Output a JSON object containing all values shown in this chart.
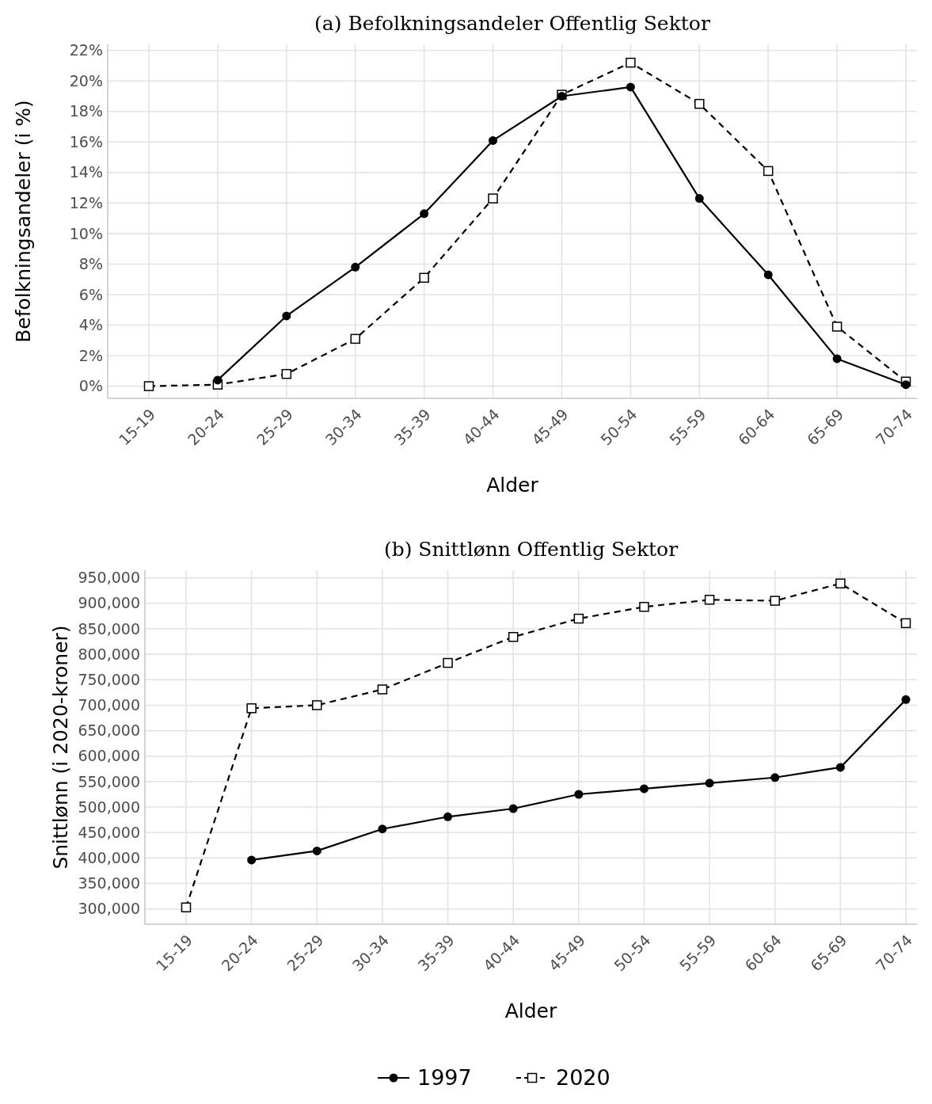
{
  "chart_data": [
    {
      "type": "line",
      "title": "(a) Befolkningsandeler Offentlig Sektor",
      "xlabel": "Alder",
      "ylabel": "Befolkningsandeler (i %)",
      "categories": [
        "15-19",
        "20-24",
        "25-29",
        "30-34",
        "35-39",
        "40-44",
        "45-49",
        "50-54",
        "55-59",
        "60-64",
        "65-69",
        "70-74"
      ],
      "series": [
        {
          "name": "1997",
          "color": "#000000",
          "marker": "circle",
          "line_style": "solid",
          "values": [
            null,
            0.4,
            4.6,
            7.8,
            11.3,
            16.1,
            19.0,
            19.6,
            12.3,
            7.3,
            1.8,
            0.1
          ]
        },
        {
          "name": "2020",
          "color": "#000000",
          "marker": "square",
          "line_style": "dashed",
          "values": [
            0.0,
            0.1,
            0.8,
            3.1,
            7.1,
            12.3,
            19.1,
            21.2,
            18.5,
            14.1,
            3.9,
            0.3
          ]
        }
      ],
      "legend": "bottom",
      "ylim": [
        -0.8,
        22.4
      ],
      "yticks": [
        {
          "value": 0,
          "label": "0%"
        },
        {
          "value": 2,
          "label": "2%"
        },
        {
          "value": 4,
          "label": "4%"
        },
        {
          "value": 6,
          "label": "6%"
        },
        {
          "value": 8,
          "label": "8%"
        },
        {
          "value": 10,
          "label": "10%"
        },
        {
          "value": 12,
          "label": "12%"
        },
        {
          "value": 14,
          "label": "14%"
        },
        {
          "value": 16,
          "label": "16%"
        },
        {
          "value": 18,
          "label": "18%"
        },
        {
          "value": 20,
          "label": "20%"
        },
        {
          "value": 22,
          "label": "22%"
        }
      ],
      "grid": true
    },
    {
      "type": "line",
      "title": "(b) Snittlønn Offentlig Sektor",
      "xlabel": "Alder",
      "ylabel": "Snittlønn (i 2020-kroner)",
      "categories": [
        "15-19",
        "20-24",
        "25-29",
        "30-34",
        "35-39",
        "40-44",
        "45-49",
        "50-54",
        "55-59",
        "60-64",
        "65-69",
        "70-74"
      ],
      "series": [
        {
          "color": "#000000",
          "marker": "circle",
          "line_style": "solid",
          "values": [
            null,
            396000,
            414000,
            457000,
            481000,
            497000,
            525000,
            536000,
            547000,
            558000,
            578000,
            711000
          ]
        },
        {
          "color": "#000000",
          "marker": "square",
          "line_style": "dashed",
          "values": [
            303000,
            694000,
            700000,
            731000,
            783000,
            834000,
            870000,
            893000,
            907000,
            905000,
            939000,
            861000
          ]
        }
      ],
      "ylim": [
        270000,
        965000
      ],
      "yticks": [
        {
          "value": 300000,
          "label": "300,000"
        },
        {
          "value": 350000,
          "label": "350,000"
        },
        {
          "value": 400000,
          "label": "400,000"
        },
        {
          "value": 450000,
          "label": "450,000"
        },
        {
          "value": 500000,
          "label": "500,000"
        },
        {
          "value": 550000,
          "label": "550,000"
        },
        {
          "value": 600000,
          "label": "600,000"
        },
        {
          "value": 650000,
          "label": "650,000"
        },
        {
          "value": 700000,
          "label": "700,000"
        },
        {
          "value": 750000,
          "label": "750,000"
        },
        {
          "value": 800000,
          "label": "800,000"
        },
        {
          "value": 850000,
          "label": "850,000"
        },
        {
          "value": 900000,
          "label": "900,000"
        },
        {
          "value": 950000,
          "label": "950,000"
        }
      ],
      "grid": true
    }
  ]
}
